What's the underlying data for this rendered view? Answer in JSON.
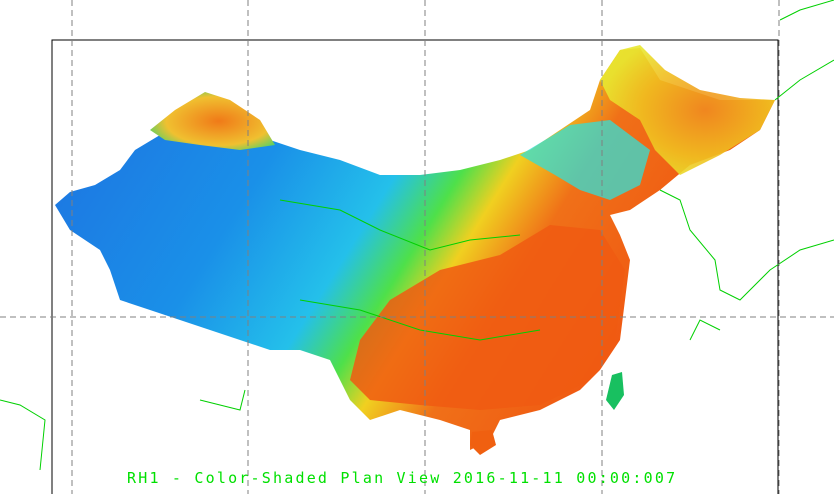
{
  "plot": {
    "title": "RH1 - Color-Shaded Plan View 2016-11-11 00:00:007",
    "variable": "RH1",
    "field_type": "color-shaded relative humidity",
    "region": "China",
    "colors": {
      "low": "#1e7be0",
      "mid_low": "#19b8ec",
      "mid": "#3ee04a",
      "mid_high": "#f0e020",
      "high": "#f06010",
      "boundary": "#00d000",
      "grid": "#808080",
      "frame": "#000000"
    },
    "grid": "dashed"
  }
}
